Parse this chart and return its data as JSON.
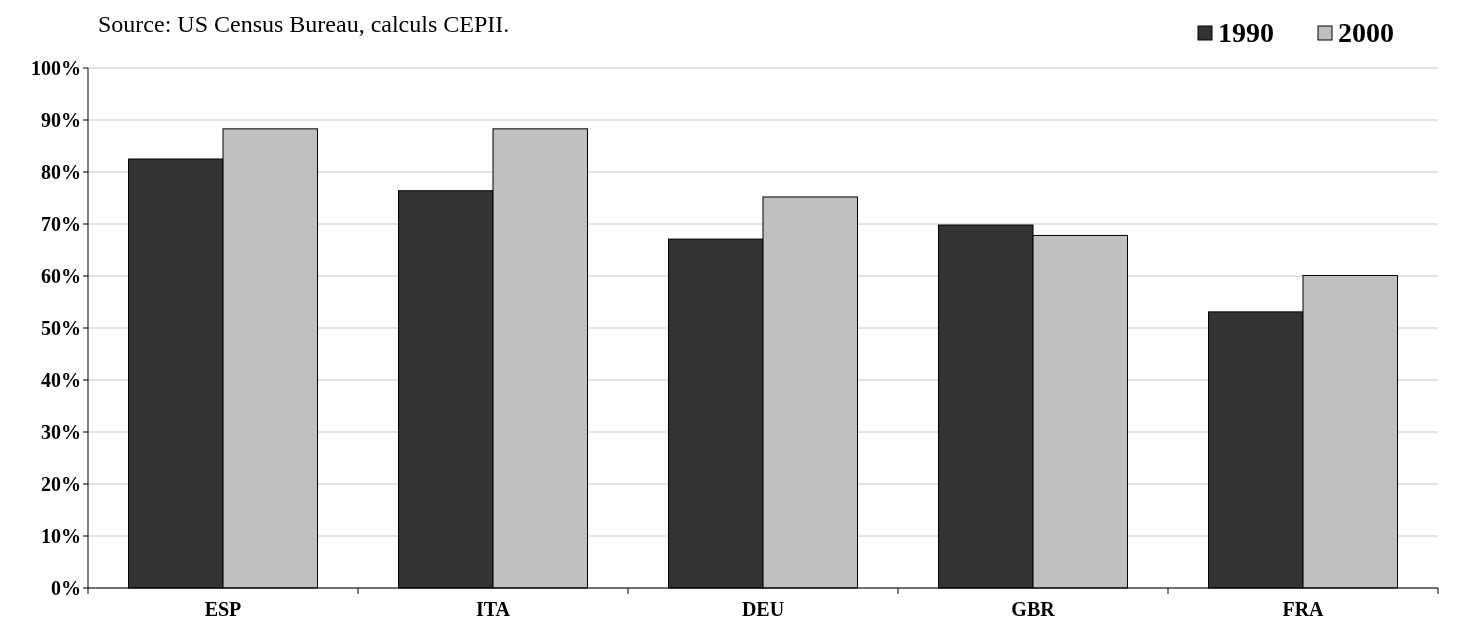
{
  "chart_data": {
    "type": "bar",
    "annotations": [
      "Source: US Census Bureau, calculs CEPII."
    ],
    "categories": [
      "ESP",
      "ITA",
      "DEU",
      "GBR",
      "FRA"
    ],
    "series": [
      {
        "name": "1990",
        "color": "#333333",
        "values": [
          82.5,
          76.4,
          67.1,
          69.8,
          53.1
        ]
      },
      {
        "name": "2000",
        "color": "#c0c0c0",
        "values": [
          88.3,
          88.3,
          75.2,
          67.8,
          60.1
        ]
      }
    ],
    "ylim": [
      0,
      100
    ],
    "yticks": [
      {
        "value": 0,
        "label": "0%"
      },
      {
        "value": 10,
        "label": "10%"
      },
      {
        "value": 20,
        "label": "20%"
      },
      {
        "value": 30,
        "label": "30%"
      },
      {
        "value": 40,
        "label": "40%"
      },
      {
        "value": 50,
        "label": "50%"
      },
      {
        "value": 60,
        "label": "60%"
      },
      {
        "value": 70,
        "label": "70%"
      },
      {
        "value": 80,
        "label": "80%"
      },
      {
        "value": 90,
        "label": "90%"
      },
      {
        "value": 100,
        "label": "100%"
      }
    ],
    "grid": "y",
    "legend": "top right"
  }
}
